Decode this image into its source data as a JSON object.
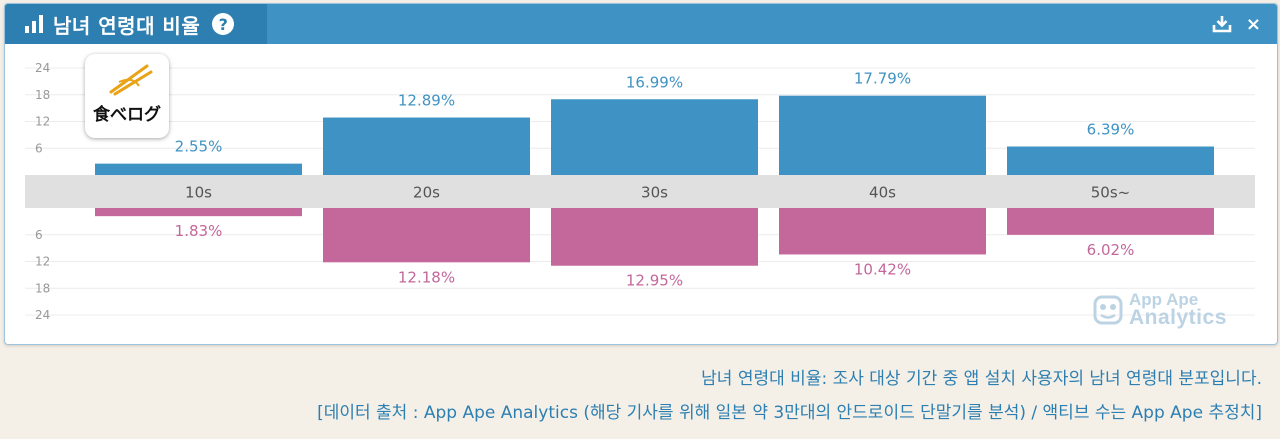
{
  "header": {
    "title": "남녀 연령대 비율",
    "help_glyph": "?",
    "close_glyph": "×"
  },
  "logo": {
    "text": "食べログ"
  },
  "watermark": {
    "line1": "App Ape",
    "line2": "Analytics"
  },
  "caption": {
    "line1": "남녀 연령대 비율: 조사 대상 기간 중 앱 설치 사용자의 남녀 연령대 분포입니다.",
    "line2": "[데이터 출처 : App Ape Analytics (해당 기사를 위해 일본 약 3만대의 안드로이드 단말기를 분석) / 액티브 수는 App Ape 추정치]"
  },
  "colors": {
    "header": "#3f93c4",
    "header_tab": "#2d7fb2",
    "male": "#3f93c4",
    "female": "#c4679b",
    "axis_band": "#e0e0e0",
    "tick_text": "#999999",
    "caption": "#2d7fb2"
  },
  "chart_data": {
    "type": "bar",
    "categories": [
      "10s",
      "20s",
      "30s",
      "40s",
      "50s~"
    ],
    "series": [
      {
        "values": [
          2.55,
          12.89,
          16.99,
          17.79,
          6.39
        ],
        "labels": [
          "2.55%",
          "12.89%",
          "16.99%",
          "17.79%",
          "6.39%"
        ],
        "color": "#3f93c4",
        "direction": "up"
      },
      {
        "values": [
          1.83,
          12.18,
          12.95,
          10.42,
          6.02
        ],
        "labels": [
          "1.83%",
          "12.18%",
          "12.95%",
          "10.42%",
          "6.02%"
        ],
        "color": "#c4679b",
        "direction": "down"
      }
    ],
    "y_ticks_upper": [
      "24",
      "18",
      "12",
      "6"
    ],
    "y_ticks_lower": [
      "6",
      "12",
      "18",
      "24"
    ],
    "ylim": [
      0,
      24
    ],
    "grid": true
  }
}
